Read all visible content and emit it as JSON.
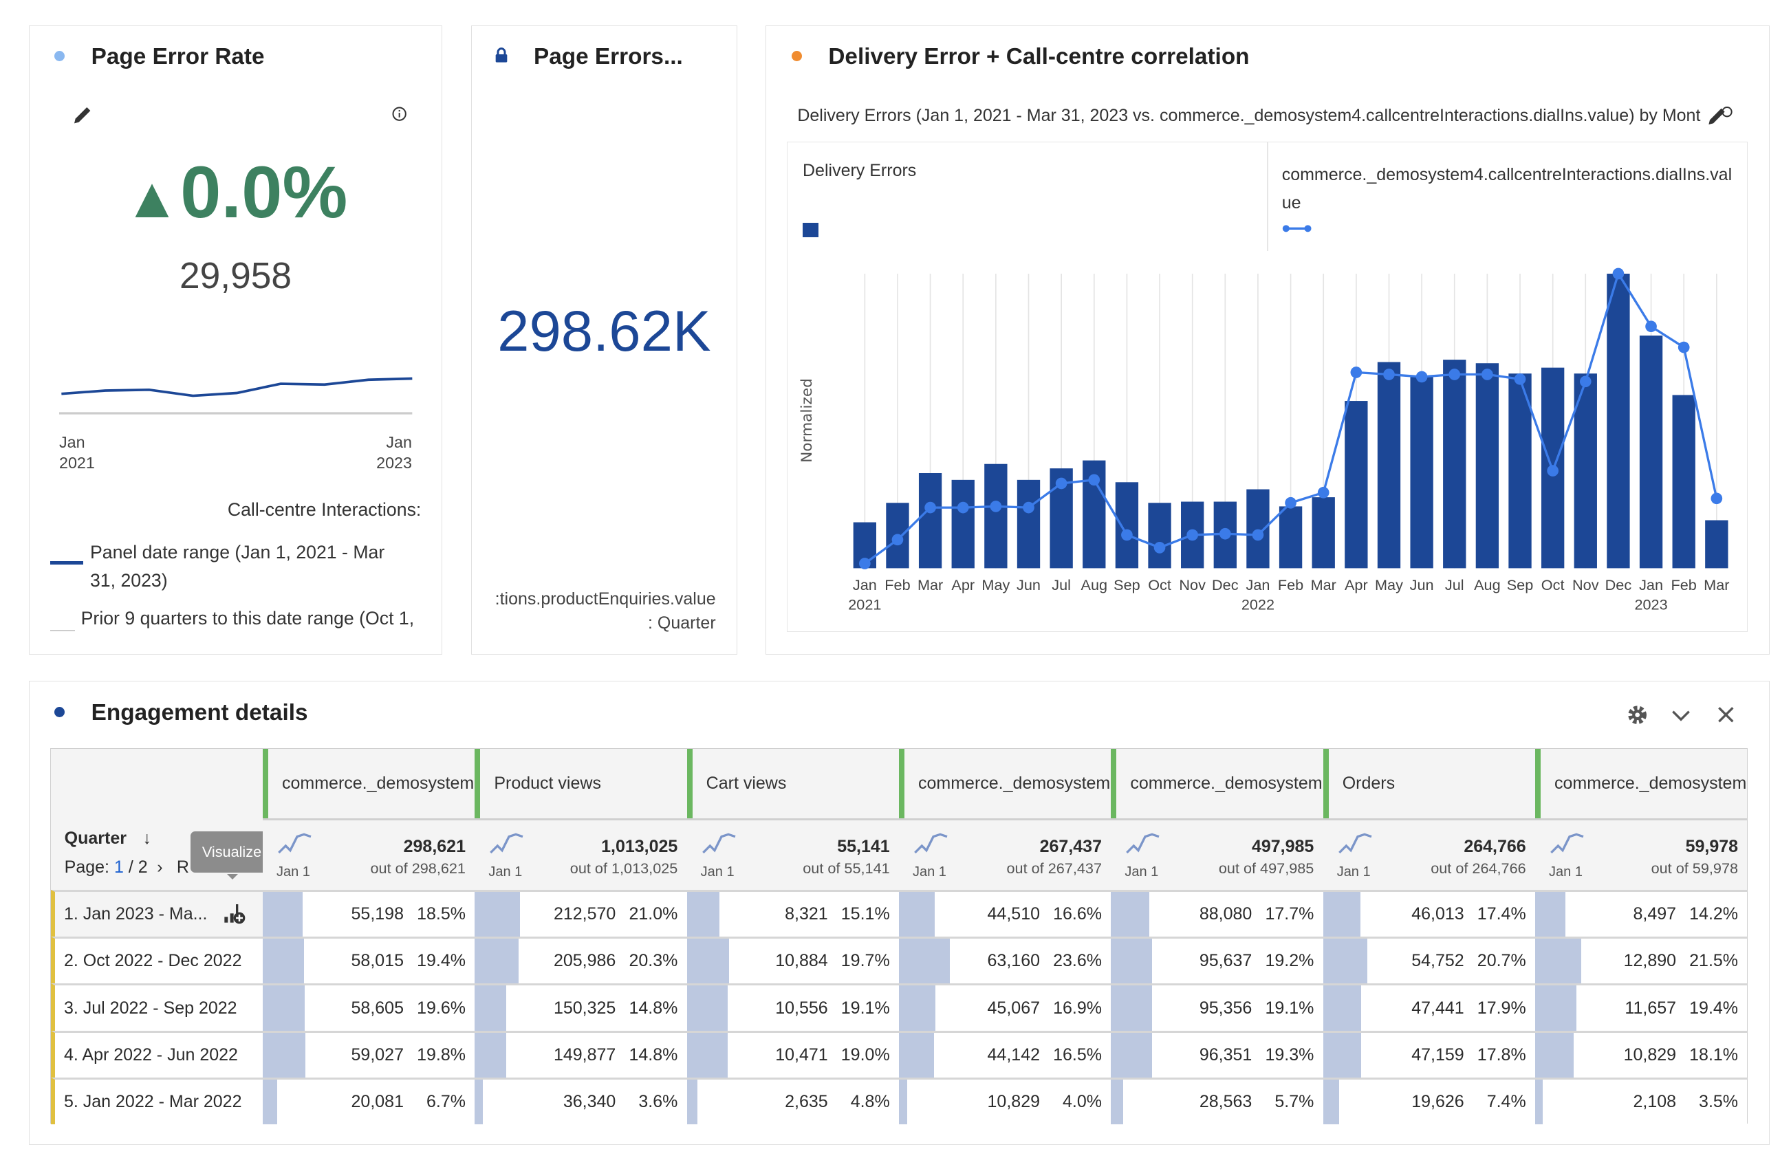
{
  "colors": {
    "accent_blue": "#1c4796",
    "line_blue": "#3b7be8",
    "green": "#3d8160",
    "table_bar": "#bcc8e0",
    "column_marker": "#6bb760",
    "row_marker": "#e0c040"
  },
  "card1": {
    "title": "Page Error Rate",
    "dot_color": "#8ab8f0",
    "icons": [
      "pencil-icon",
      "info-icon"
    ],
    "change": "0.0%",
    "change_icon": "triangle-up-icon",
    "value": "29,958",
    "spark_x_start": [
      "Jan",
      "2021"
    ],
    "spark_x_end": [
      "Jan",
      "2023"
    ],
    "spark_values": [
      40,
      48,
      50,
      35,
      42,
      65,
      63,
      75,
      78
    ],
    "legend_title": "Call-centre Interactions:",
    "legend_current": "Panel date range (Jan 1, 2021 - Mar 31, 2023)",
    "legend_prior": "Prior 9 quarters to this date range (Oct 1,"
  },
  "card2": {
    "title": "Page Errors...",
    "icon": "lock-icon",
    "value": "298.62K",
    "footer_line1": ":tions.productEnquiries.value",
    "footer_line2": ": Quarter"
  },
  "card3": {
    "title": "Delivery Error + Call-centre correlation",
    "dot_color": "#f08c30",
    "subtitle": "Delivery Errors (Jan 1, 2021 - Mar 31, 2023 vs. commerce._demosystem4.callcentreInteractions.dialIns.value) by Mont",
    "legend": [
      {
        "name": "Delivery Errors",
        "type": "bar"
      },
      {
        "name": "commerce._demosystem4.callcentreInteractions.dialIns.value",
        "type": "line"
      }
    ]
  },
  "chart_data": {
    "type": "bar",
    "ylabel": "Normalized",
    "ylim": [
      0,
      100
    ],
    "categories": [
      "Jan",
      "Feb",
      "Mar",
      "Apr",
      "May",
      "Jun",
      "Jul",
      "Aug",
      "Sep",
      "Oct",
      "Nov",
      "Dec",
      "Jan",
      "Feb",
      "Mar",
      "Apr",
      "May",
      "Jun",
      "Jul",
      "Aug",
      "Sep",
      "Oct",
      "Nov",
      "Dec",
      "Jan",
      "Feb",
      "Mar"
    ],
    "year_labels": [
      {
        "index": 0,
        "label": "2021"
      },
      {
        "index": 12,
        "label": "2022"
      },
      {
        "index": 24,
        "label": "2023"
      }
    ],
    "series": [
      {
        "name": "Delivery Errors",
        "type": "bar",
        "values": [
          15.6,
          22.2,
          32.3,
          30,
          35.4,
          30,
          33.9,
          36.6,
          29.2,
          22.2,
          22.6,
          22.6,
          26.8,
          21,
          24.1,
          56.8,
          70,
          65.4,
          70.8,
          69.6,
          66.1,
          68.1,
          66.1,
          100,
          79,
          58.8,
          16.3
        ]
      },
      {
        "name": "commerce._demosystem4.callcentreInteractions.dialIns.value",
        "type": "line",
        "values": [
          1.6,
          9.7,
          20.6,
          20.6,
          21,
          20.6,
          28.8,
          30,
          11.3,
          7,
          11.3,
          11.7,
          11.3,
          22.2,
          25.7,
          66.5,
          65.8,
          65,
          65.8,
          65.8,
          64.2,
          33.1,
          63.4,
          100,
          82.1,
          75,
          23.7
        ]
      }
    ]
  },
  "panel": {
    "title": "Engagement details",
    "dot_color": "#1c4796",
    "icons": [
      "gear-icon",
      "chevron-down-icon",
      "close-icon"
    ],
    "dimension": "Quarter",
    "page_label": "Page:",
    "page_current": "1",
    "page_total": "/ 2",
    "page_next": "›",
    "rows_label": "R",
    "tooltip": "Visualize",
    "columns": [
      {
        "header": "commerce._demosystem",
        "total": "298,621",
        "out_of": "out of 298,621",
        "spark": "Jan 1"
      },
      {
        "header": "Product views",
        "total": "1,013,025",
        "out_of": "out of 1,013,025",
        "spark": "Jan 1"
      },
      {
        "header": "Cart views",
        "total": "55,141",
        "out_of": "out of 55,141",
        "spark": "Jan 1"
      },
      {
        "header": "commerce._demosystem",
        "total": "267,437",
        "out_of": "out of 267,437",
        "spark": "Jan 1"
      },
      {
        "header": "commerce._demosystem",
        "total": "497,985",
        "out_of": "out of 497,985",
        "spark": "Jan 1"
      },
      {
        "header": "Orders",
        "total": "264,766",
        "out_of": "out of 264,766",
        "spark": "Jan 1"
      },
      {
        "header": "commerce._demosystem",
        "total": "59,978",
        "out_of": "out of 59,978",
        "spark": "Jan 1"
      }
    ],
    "rows": [
      {
        "label": "1.  Jan 2023 - Ma...",
        "cells": [
          [
            "55,198",
            "18.5%"
          ],
          [
            "212,570",
            "21.0%"
          ],
          [
            "8,321",
            "15.1%"
          ],
          [
            "44,510",
            "16.6%"
          ],
          [
            "88,080",
            "17.7%"
          ],
          [
            "46,013",
            "17.4%"
          ],
          [
            "8,497",
            "14.2%"
          ]
        ]
      },
      {
        "label": "2.  Oct 2022 - Dec 2022",
        "cells": [
          [
            "58,015",
            "19.4%"
          ],
          [
            "205,986",
            "20.3%"
          ],
          [
            "10,884",
            "19.7%"
          ],
          [
            "63,160",
            "23.6%"
          ],
          [
            "95,637",
            "19.2%"
          ],
          [
            "54,752",
            "20.7%"
          ],
          [
            "12,890",
            "21.5%"
          ]
        ]
      },
      {
        "label": "3.  Jul 2022 - Sep 2022",
        "cells": [
          [
            "58,605",
            "19.6%"
          ],
          [
            "150,325",
            "14.8%"
          ],
          [
            "10,556",
            "19.1%"
          ],
          [
            "45,067",
            "16.9%"
          ],
          [
            "95,356",
            "19.1%"
          ],
          [
            "47,441",
            "17.9%"
          ],
          [
            "11,657",
            "19.4%"
          ]
        ]
      },
      {
        "label": "4.  Apr 2022 - Jun 2022",
        "cells": [
          [
            "59,027",
            "19.8%"
          ],
          [
            "149,877",
            "14.8%"
          ],
          [
            "10,471",
            "19.0%"
          ],
          [
            "44,142",
            "16.5%"
          ],
          [
            "96,351",
            "19.3%"
          ],
          [
            "47,159",
            "17.8%"
          ],
          [
            "10,829",
            "18.1%"
          ]
        ]
      },
      {
        "label": "5.  Jan 2022 - Mar 2022",
        "cells": [
          [
            "20,081",
            "6.7%"
          ],
          [
            "36,340",
            "3.6%"
          ],
          [
            "2,635",
            "4.8%"
          ],
          [
            "10,829",
            "4.0%"
          ],
          [
            "28,563",
            "5.7%"
          ],
          [
            "19,626",
            "7.4%"
          ],
          [
            "2,108",
            "3.5%"
          ]
        ]
      }
    ]
  }
}
